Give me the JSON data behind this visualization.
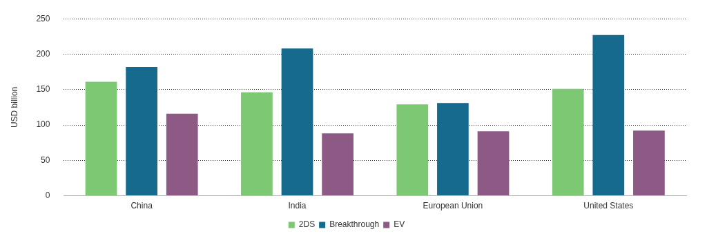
{
  "chart_data": {
    "type": "bar",
    "ylabel": "USD billion",
    "categories": [
      "China",
      "India",
      "European Union",
      "United States"
    ],
    "series": [
      {
        "name": "2DS",
        "color": "#7dc873",
        "values": [
          161,
          146,
          129,
          151
        ]
      },
      {
        "name": "Breakthrough",
        "color": "#156a8e",
        "values": [
          182,
          208,
          131,
          227
        ]
      },
      {
        "name": "EV",
        "color": "#8c5a84",
        "values": [
          116,
          88,
          91,
          92
        ]
      }
    ],
    "ylim": [
      0,
      250
    ],
    "yticks": [
      0,
      50,
      100,
      150,
      200,
      250
    ],
    "grid": "y",
    "legend": "bottom"
  }
}
